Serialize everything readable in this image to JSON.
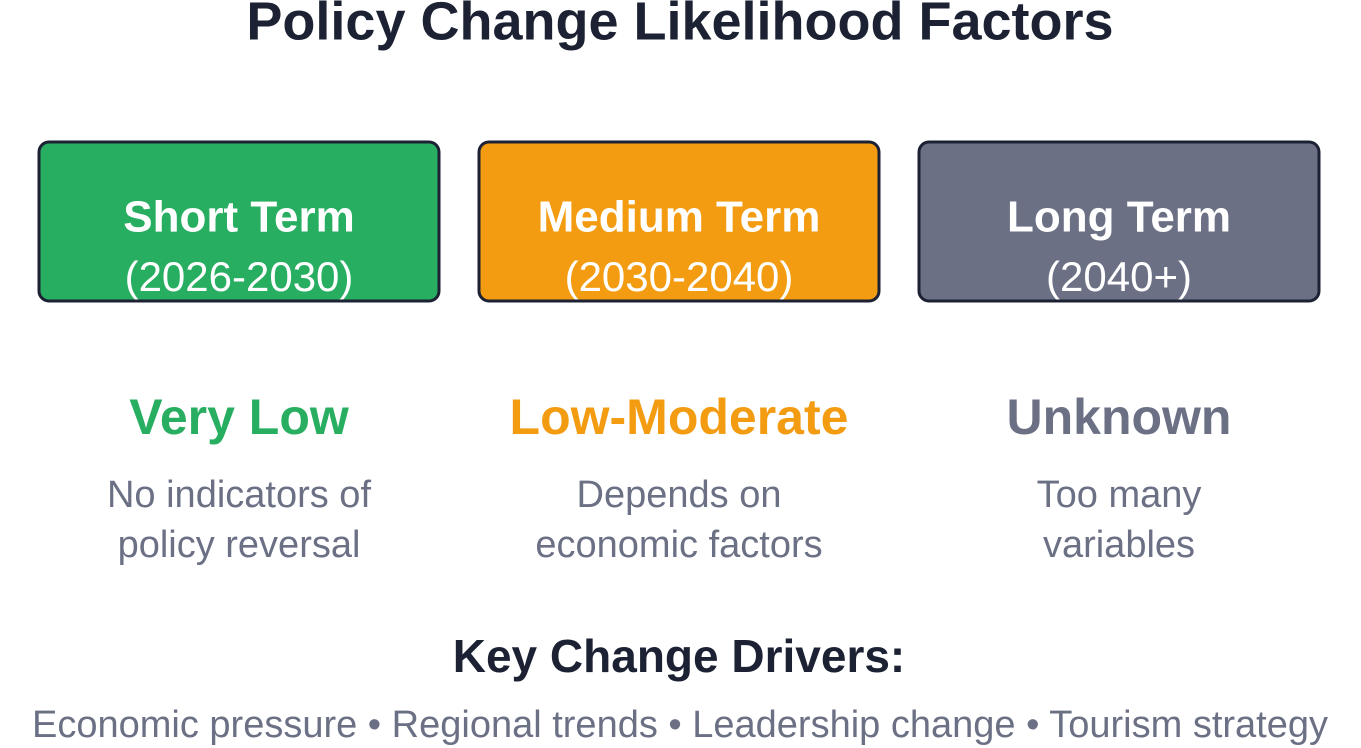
{
  "header": {
    "title": "Policy Change Likelihood Factors"
  },
  "columns": [
    {
      "term": "Short Term",
      "period": "(2026-2030)",
      "likelihood": "Very Low",
      "color": "#27ae60",
      "description": [
        "No indicators of",
        "policy reversal"
      ]
    },
    {
      "term": "Medium Term",
      "period": "(2030-2040)",
      "likelihood": "Low-Moderate",
      "color": "#f39c12",
      "description": [
        "Depends on",
        "economic factors"
      ]
    },
    {
      "term": "Long Term",
      "period": "(2040+)",
      "likelihood": "Unknown",
      "color": "#6b7085",
      "description": [
        "Too many",
        "variables"
      ]
    }
  ],
  "drivers": {
    "heading": "Key Change Drivers:",
    "text": "Economic pressure • Regional trends • Leadership change • Tourism strategy"
  }
}
